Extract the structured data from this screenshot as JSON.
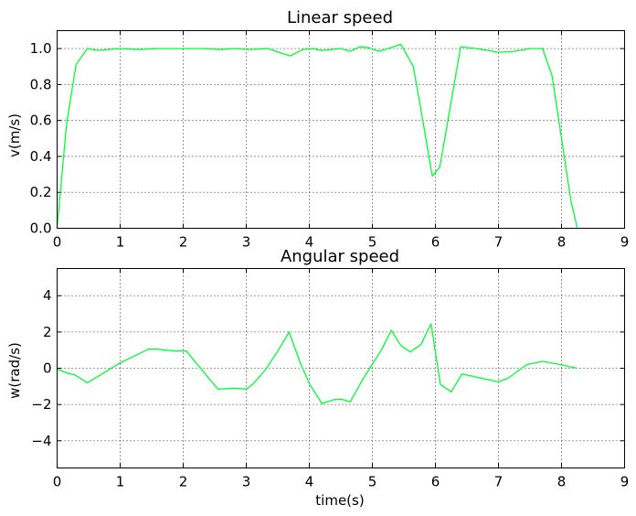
{
  "chart_data": [
    {
      "type": "line",
      "title": "Linear speed",
      "xlabel": "",
      "ylabel": "v(m/s)",
      "xlim": [
        0,
        9
      ],
      "ylim": [
        0,
        1.1
      ],
      "xticks": [
        "0",
        "1",
        "2",
        "3",
        "4",
        "5",
        "6",
        "7",
        "8",
        "9"
      ],
      "yticks": [
        "0.0",
        "0.2",
        "0.4",
        "0.6",
        "0.8",
        "1.0"
      ],
      "grid": true,
      "line_color": "#00ff33",
      "series": [
        {
          "x": [
            0.0,
            0.15,
            0.3,
            0.48,
            0.65,
            1.0,
            1.3,
            1.6,
            2.0,
            2.3,
            2.6,
            2.8,
            3.05,
            3.35,
            3.55,
            3.7,
            3.9,
            4.05,
            4.2,
            4.5,
            4.65,
            4.8,
            4.95,
            5.1,
            5.25,
            5.45,
            5.65,
            5.8,
            5.95,
            6.07,
            6.4,
            6.65,
            7.0,
            7.25,
            7.5,
            7.7,
            7.85,
            8.0,
            8.15,
            8.25
          ],
          "y": [
            0.0,
            0.58,
            0.91,
            1.0,
            0.99,
            1.0,
            0.995,
            1.0,
            1.0,
            1.0,
            0.995,
            1.0,
            0.995,
            1.0,
            0.975,
            0.96,
            0.995,
            1.0,
            0.99,
            1.0,
            0.985,
            1.01,
            1.005,
            0.985,
            1.0,
            1.025,
            0.9,
            0.6,
            0.29,
            0.34,
            1.01,
            1.0,
            0.98,
            0.985,
            1.0,
            1.0,
            0.85,
            0.5,
            0.15,
            0.0
          ]
        }
      ]
    },
    {
      "type": "line",
      "title": "Angular speed",
      "xlabel": "time(s)",
      "ylabel": "w(rad/s)",
      "xlim": [
        0,
        9
      ],
      "ylim": [
        -5.5,
        5.5
      ],
      "xticks": [
        "0",
        "1",
        "2",
        "3",
        "4",
        "5",
        "6",
        "7",
        "8",
        "9"
      ],
      "yticks": [
        "−4",
        "−2",
        "0",
        "2",
        "4"
      ],
      "grid": true,
      "line_color": "#00ff33",
      "series": [
        {
          "x": [
            0.0,
            0.15,
            0.3,
            0.48,
            1.0,
            1.45,
            1.6,
            1.85,
            2.05,
            2.55,
            2.8,
            3.0,
            3.1,
            3.3,
            3.5,
            3.68,
            3.85,
            4.0,
            4.2,
            4.4,
            4.5,
            4.65,
            4.85,
            5.05,
            5.15,
            5.3,
            5.45,
            5.6,
            5.77,
            5.93,
            6.08,
            6.25,
            6.42,
            7.0,
            7.15,
            7.45,
            7.7,
            7.95,
            8.25
          ],
          "y": [
            -0.05,
            -0.25,
            -0.4,
            -0.8,
            0.3,
            1.05,
            1.05,
            0.95,
            0.95,
            -1.15,
            -1.1,
            -1.15,
            -0.9,
            -0.1,
            0.95,
            2.0,
            0.35,
            -0.85,
            -1.95,
            -1.72,
            -1.7,
            -1.85,
            -0.6,
            0.5,
            1.05,
            2.1,
            1.25,
            0.9,
            1.3,
            2.45,
            -0.9,
            -1.3,
            -0.32,
            -0.75,
            -0.55,
            0.2,
            0.38,
            0.22,
            0.0
          ]
        }
      ]
    }
  ]
}
